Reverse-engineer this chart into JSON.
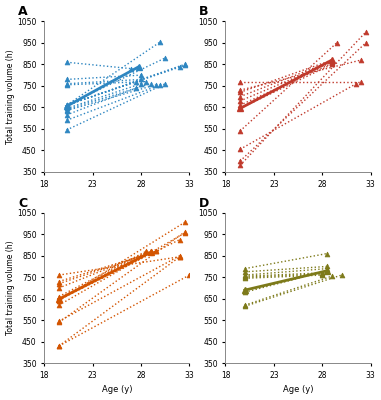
{
  "panels": [
    {
      "label": "A",
      "color": "#2e86c1",
      "individual_lines": [
        {
          "x": [
            20.3,
            27.0
          ],
          "y": [
            860,
            830
          ]
        },
        {
          "x": [
            20.3,
            28.0
          ],
          "y": [
            780,
            800
          ]
        },
        {
          "x": [
            20.3,
            28.0
          ],
          "y": [
            760,
            780
          ]
        },
        {
          "x": [
            20.3,
            28.5
          ],
          "y": [
            755,
            770
          ]
        },
        {
          "x": [
            20.3,
            27.5
          ],
          "y": [
            660,
            770
          ]
        },
        {
          "x": [
            20.3,
            28.0
          ],
          "y": [
            645,
            760
          ]
        },
        {
          "x": [
            20.3,
            29.0
          ],
          "y": [
            640,
            760
          ]
        },
        {
          "x": [
            20.3,
            29.5
          ],
          "y": [
            635,
            755
          ]
        },
        {
          "x": [
            20.3,
            27.5
          ],
          "y": [
            615,
            740
          ]
        },
        {
          "x": [
            20.3,
            30.0
          ],
          "y": [
            590,
            755
          ]
        },
        {
          "x": [
            20.3,
            30.5
          ],
          "y": [
            545,
            760
          ]
        },
        {
          "x": [
            20.3,
            30.0
          ],
          "y": [
            660,
            955
          ]
        },
        {
          "x": [
            20.3,
            30.5
          ],
          "y": [
            660,
            880
          ]
        },
        {
          "x": [
            20.3,
            32.0
          ],
          "y": [
            660,
            840
          ]
        },
        {
          "x": [
            20.3,
            32.5
          ],
          "y": [
            660,
            850
          ]
        },
        {
          "x": [
            20.3,
            32.5
          ],
          "y": [
            660,
            845
          ]
        }
      ],
      "mean_line": {
        "x": [
          20.3,
          27.8
        ],
        "y": [
          655,
          840
        ]
      },
      "ylim": [
        350,
        1050
      ],
      "yticks": [
        350,
        450,
        550,
        650,
        750,
        850,
        950,
        1050
      ],
      "ylabel": "Total training volume (h)",
      "show_xlabel": false
    },
    {
      "label": "B",
      "color": "#c0392b",
      "individual_lines": [
        {
          "x": [
            19.5,
            32.0
          ],
          "y": [
            770,
            770
          ]
        },
        {
          "x": [
            19.5,
            32.0
          ],
          "y": [
            730,
            870
          ]
        },
        {
          "x": [
            19.5,
            29.0
          ],
          "y": [
            720,
            870
          ]
        },
        {
          "x": [
            19.5,
            29.0
          ],
          "y": [
            700,
            865
          ]
        },
        {
          "x": [
            19.5,
            29.0
          ],
          "y": [
            680,
            860
          ]
        },
        {
          "x": [
            19.5,
            29.0
          ],
          "y": [
            660,
            855
          ]
        },
        {
          "x": [
            19.5,
            29.0
          ],
          "y": [
            645,
            850
          ]
        },
        {
          "x": [
            19.5,
            29.5
          ],
          "y": [
            540,
            950
          ]
        },
        {
          "x": [
            19.5,
            32.5
          ],
          "y": [
            380,
            1000
          ]
        },
        {
          "x": [
            19.5,
            32.5
          ],
          "y": [
            400,
            950
          ]
        },
        {
          "x": [
            19.5,
            31.5
          ],
          "y": [
            455,
            760
          ]
        }
      ],
      "mean_line": {
        "x": [
          19.5,
          29.0
        ],
        "y": [
          645,
          870
        ]
      },
      "ylim": [
        350,
        1050
      ],
      "yticks": [
        350,
        450,
        550,
        650,
        750,
        850,
        950,
        1050
      ],
      "ylabel": "",
      "show_xlabel": false
    },
    {
      "label": "C",
      "color": "#d35400",
      "individual_lines": [
        {
          "x": [
            19.5,
            32.0
          ],
          "y": [
            760,
            845
          ]
        },
        {
          "x": [
            19.5,
            29.5
          ],
          "y": [
            730,
            870
          ]
        },
        {
          "x": [
            19.5,
            29.5
          ],
          "y": [
            720,
            870
          ]
        },
        {
          "x": [
            19.5,
            29.0
          ],
          "y": [
            700,
            870
          ]
        },
        {
          "x": [
            19.5,
            28.5
          ],
          "y": [
            660,
            870
          ]
        },
        {
          "x": [
            19.5,
            28.5
          ],
          "y": [
            650,
            865
          ]
        },
        {
          "x": [
            19.5,
            32.0
          ],
          "y": [
            645,
            925
          ]
        },
        {
          "x": [
            19.5,
            32.5
          ],
          "y": [
            640,
            1005
          ]
        },
        {
          "x": [
            19.5,
            32.5
          ],
          "y": [
            620,
            955
          ]
        },
        {
          "x": [
            19.5,
            32.0
          ],
          "y": [
            545,
            850
          ]
        },
        {
          "x": [
            19.5,
            32.5
          ],
          "y": [
            540,
            960
          ]
        },
        {
          "x": [
            19.5,
            33.0
          ],
          "y": [
            430,
            760
          ]
        },
        {
          "x": [
            19.5,
            32.0
          ],
          "y": [
            430,
            845
          ]
        }
      ],
      "mean_line": {
        "x": [
          19.5,
          29.0
        ],
        "y": [
          648,
          866
        ]
      },
      "ylim": [
        350,
        1050
      ],
      "yticks": [
        350,
        450,
        550,
        650,
        750,
        850,
        950,
        1050
      ],
      "ylabel": "Total training volume (h)",
      "show_xlabel": true
    },
    {
      "label": "D",
      "color": "#7d7a1a",
      "individual_lines": [
        {
          "x": [
            20.0,
            28.5
          ],
          "y": [
            790,
            860
          ]
        },
        {
          "x": [
            20.0,
            28.5
          ],
          "y": [
            775,
            800
          ]
        },
        {
          "x": [
            20.0,
            28.5
          ],
          "y": [
            760,
            790
          ]
        },
        {
          "x": [
            20.0,
            28.0
          ],
          "y": [
            755,
            770
          ]
        },
        {
          "x": [
            20.0,
            28.0
          ],
          "y": [
            750,
            765
          ]
        },
        {
          "x": [
            20.0,
            28.0
          ],
          "y": [
            745,
            760
          ]
        },
        {
          "x": [
            20.0,
            28.5
          ],
          "y": [
            680,
            780
          ]
        },
        {
          "x": [
            20.0,
            29.0
          ],
          "y": [
            620,
            755
          ]
        },
        {
          "x": [
            20.0,
            30.0
          ],
          "y": [
            615,
            760
          ]
        }
      ],
      "mean_line": {
        "x": [
          20.0,
          28.5
        ],
        "y": [
          690,
          780
        ]
      },
      "ylim": [
        350,
        1050
      ],
      "yticks": [
        350,
        450,
        550,
        650,
        750,
        850,
        950,
        1050
      ],
      "ylabel": "",
      "show_xlabel": true
    }
  ],
  "xlim": [
    18,
    33
  ],
  "xticks": [
    18,
    23,
    28,
    33
  ],
  "xlabel": "Age (y)",
  "mean_linewidth": 2.0,
  "individual_linewidth": 1.0
}
